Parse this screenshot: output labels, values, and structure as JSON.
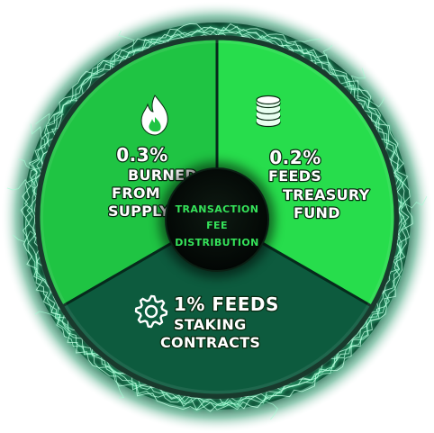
{
  "chart_data": {
    "type": "pie",
    "title": "",
    "center_label": [
      "TRANSACTION",
      "FEE",
      "DISTRIBUTION"
    ],
    "slices": [
      {
        "key": "burn",
        "value": 0.3,
        "pct_label": "0.3%",
        "label_lines": [
          "BURNED",
          "FROM",
          "SUPPLY"
        ],
        "icon": "flame-icon",
        "color": "#1fc443"
      },
      {
        "key": "treasury",
        "value": 0.2,
        "pct_label": "0.2%",
        "label_lines": [
          "FEEDS",
          "TREASURY",
          "FUND"
        ],
        "icon": "coin-stack-icon",
        "color": "#27dd4c"
      },
      {
        "key": "staking",
        "value": 1.0,
        "pct_label": "1% FEEDS",
        "label_lines": [
          "STAKING",
          "CONTRACTS"
        ],
        "icon": "gear-icon",
        "color": "#0d5b3e"
      }
    ],
    "colors": {
      "border_dark": "#062a1c",
      "glow": "#5dffb0",
      "center_fill": "#050d08",
      "center_text": "#35e35a"
    }
  }
}
